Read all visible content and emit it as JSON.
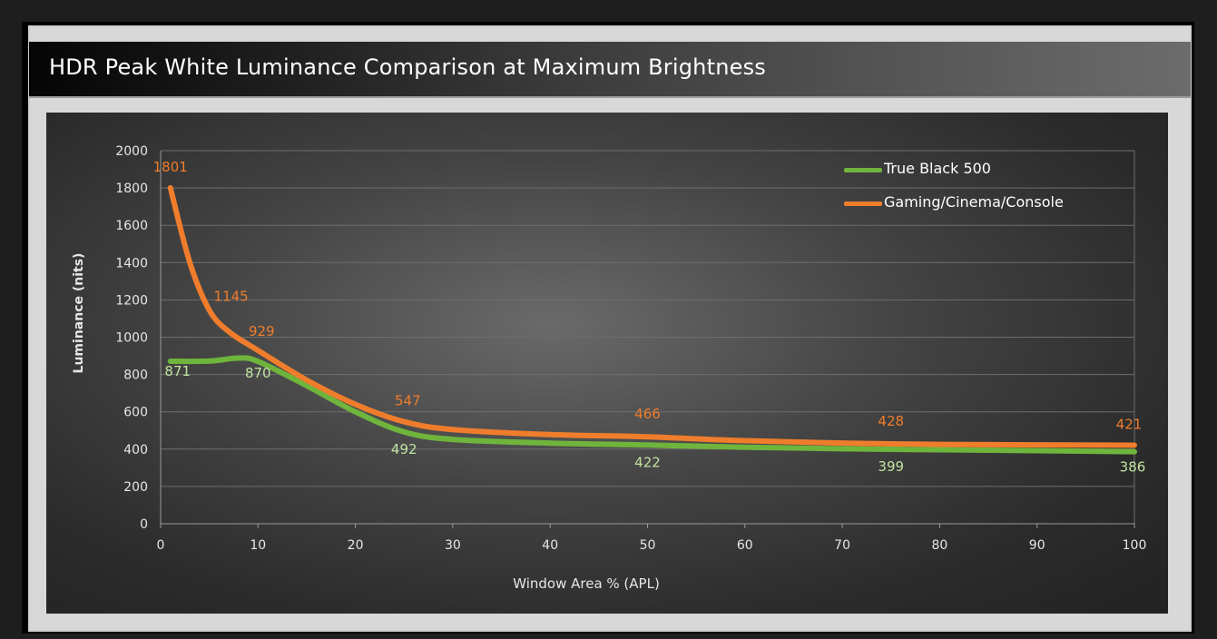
{
  "title": "HDR Peak White Luminance Comparison at Maximum Brightness",
  "colors": {
    "true_black": "#6fb43c",
    "gaming": "#ef7d2c",
    "grid": "#6e6e6e",
    "tick_text": "#e6e6e6"
  },
  "chart_data": {
    "type": "line",
    "title": "HDR Peak White Luminance Comparison at Maximum Brightness",
    "xlabel": "Window Area % (APL)",
    "ylabel": "Luminance (nits)",
    "xlim": [
      0,
      100
    ],
    "ylim": [
      0,
      2000
    ],
    "x_ticks": [
      0,
      10,
      20,
      30,
      40,
      50,
      60,
      70,
      80,
      90,
      100
    ],
    "y_ticks": [
      0,
      200,
      400,
      600,
      800,
      1000,
      1200,
      1400,
      1600,
      1800,
      2000
    ],
    "grid": "horizontal",
    "legend_position": "top-right",
    "series": [
      {
        "name": "True Black 500",
        "color": "#6fb43c",
        "points": [
          [
            1,
            871
          ],
          [
            5,
            872
          ],
          [
            8,
            888
          ],
          [
            10,
            870
          ],
          [
            15,
            740
          ],
          [
            20,
            600
          ],
          [
            25,
            492
          ],
          [
            30,
            452
          ],
          [
            40,
            432
          ],
          [
            50,
            422
          ],
          [
            60,
            410
          ],
          [
            75,
            399
          ],
          [
            90,
            392
          ],
          [
            100,
            386
          ]
        ],
        "labels": [
          {
            "x": 1,
            "y": 871,
            "text": "871"
          },
          {
            "x": 10,
            "y": 870,
            "text": "870"
          },
          {
            "x": 25,
            "y": 492,
            "text": "492"
          },
          {
            "x": 50,
            "y": 422,
            "text": "422"
          },
          {
            "x": 75,
            "y": 399,
            "text": "399"
          },
          {
            "x": 100,
            "y": 386,
            "text": "386"
          }
        ]
      },
      {
        "name": "Gaming/Cinema/Console",
        "color": "#ef7d2c",
        "points": [
          [
            1,
            1801
          ],
          [
            3,
            1400
          ],
          [
            5,
            1145
          ],
          [
            7,
            1030
          ],
          [
            10,
            929
          ],
          [
            15,
            770
          ],
          [
            20,
            640
          ],
          [
            25,
            547
          ],
          [
            30,
            505
          ],
          [
            40,
            478
          ],
          [
            50,
            466
          ],
          [
            60,
            445
          ],
          [
            75,
            428
          ],
          [
            90,
            423
          ],
          [
            100,
            421
          ]
        ],
        "labels": [
          {
            "x": 1,
            "y": 1801,
            "text": "1801"
          },
          {
            "x": 5,
            "y": 1145,
            "text": "1145"
          },
          {
            "x": 10,
            "y": 929,
            "text": "929"
          },
          {
            "x": 25,
            "y": 547,
            "text": "547"
          },
          {
            "x": 50,
            "y": 466,
            "text": "466"
          },
          {
            "x": 75,
            "y": 428,
            "text": "428"
          },
          {
            "x": 100,
            "y": 421,
            "text": "421"
          }
        ]
      }
    ]
  }
}
